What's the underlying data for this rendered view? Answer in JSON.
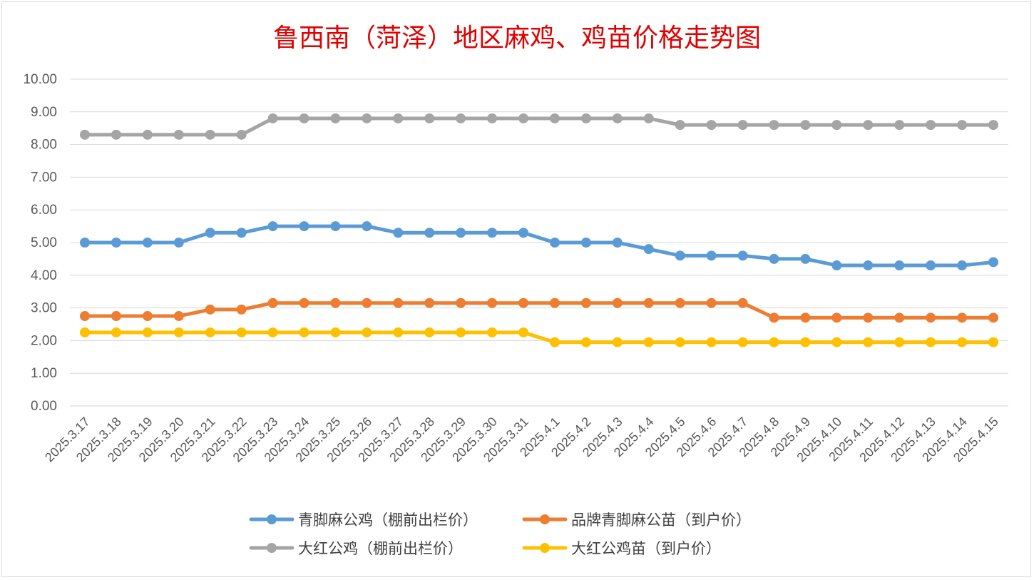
{
  "chart_data": {
    "type": "line",
    "title": "鲁西南（菏泽）地区麻鸡、鸡苗价格走势图",
    "xlabel": "",
    "ylabel": "",
    "ylim": [
      0,
      10
    ],
    "ytick_labels": [
      "0.00",
      "1.00",
      "2.00",
      "3.00",
      "4.00",
      "5.00",
      "6.00",
      "7.00",
      "8.00",
      "9.00",
      "10.00"
    ],
    "grid": true,
    "legend_position": "bottom",
    "categories": [
      "2025.3.17",
      "2025.3.18",
      "2025.3.19",
      "2025.3.20",
      "2025.3.21",
      "2025.3.22",
      "2025.3.23",
      "2025.3.24",
      "2025.3.25",
      "2025.3.26",
      "2025.3.27",
      "2025.3.28",
      "2025.3.29",
      "2025.3.30",
      "2025.3.31",
      "2025.4.1",
      "2025.4.2",
      "2025.4.3",
      "2025.4.4",
      "2025.4.5",
      "2025.4.6",
      "2025.4.7",
      "2025.4.8",
      "2025.4.9",
      "2025.4.10",
      "2025.4.11",
      "2025.4.12",
      "2025.4.13",
      "2025.4.14",
      "2025.4.15"
    ],
    "series": [
      {
        "name": "青脚麻公鸡（棚前出栏价）",
        "color": "#5b9bd5",
        "values": [
          5.0,
          5.0,
          5.0,
          5.0,
          5.3,
          5.3,
          5.5,
          5.5,
          5.5,
          5.5,
          5.3,
          5.3,
          5.3,
          5.3,
          5.3,
          5.0,
          5.0,
          5.0,
          4.8,
          4.6,
          4.6,
          4.6,
          4.5,
          4.5,
          4.3,
          4.3,
          4.3,
          4.3,
          4.3,
          4.4
        ]
      },
      {
        "name": "品牌青脚麻公苗（到户价）",
        "color": "#ed7d31",
        "values": [
          2.75,
          2.75,
          2.75,
          2.75,
          2.95,
          2.95,
          3.15,
          3.15,
          3.15,
          3.15,
          3.15,
          3.15,
          3.15,
          3.15,
          3.15,
          3.15,
          3.15,
          3.15,
          3.15,
          3.15,
          3.15,
          3.15,
          2.7,
          2.7,
          2.7,
          2.7,
          2.7,
          2.7,
          2.7,
          2.7
        ]
      },
      {
        "name": "大红公鸡（棚前出栏价）",
        "color": "#a5a5a5",
        "values": [
          8.3,
          8.3,
          8.3,
          8.3,
          8.3,
          8.3,
          8.8,
          8.8,
          8.8,
          8.8,
          8.8,
          8.8,
          8.8,
          8.8,
          8.8,
          8.8,
          8.8,
          8.8,
          8.8,
          8.6,
          8.6,
          8.6,
          8.6,
          8.6,
          8.6,
          8.6,
          8.6,
          8.6,
          8.6,
          8.6
        ]
      },
      {
        "name": "大红公鸡苗（到户价）",
        "color": "#ffc000",
        "values": [
          2.25,
          2.25,
          2.25,
          2.25,
          2.25,
          2.25,
          2.25,
          2.25,
          2.25,
          2.25,
          2.25,
          2.25,
          2.25,
          2.25,
          2.25,
          1.95,
          1.95,
          1.95,
          1.95,
          1.95,
          1.95,
          1.95,
          1.95,
          1.95,
          1.95,
          1.95,
          1.95,
          1.95,
          1.95,
          1.95
        ]
      }
    ]
  }
}
